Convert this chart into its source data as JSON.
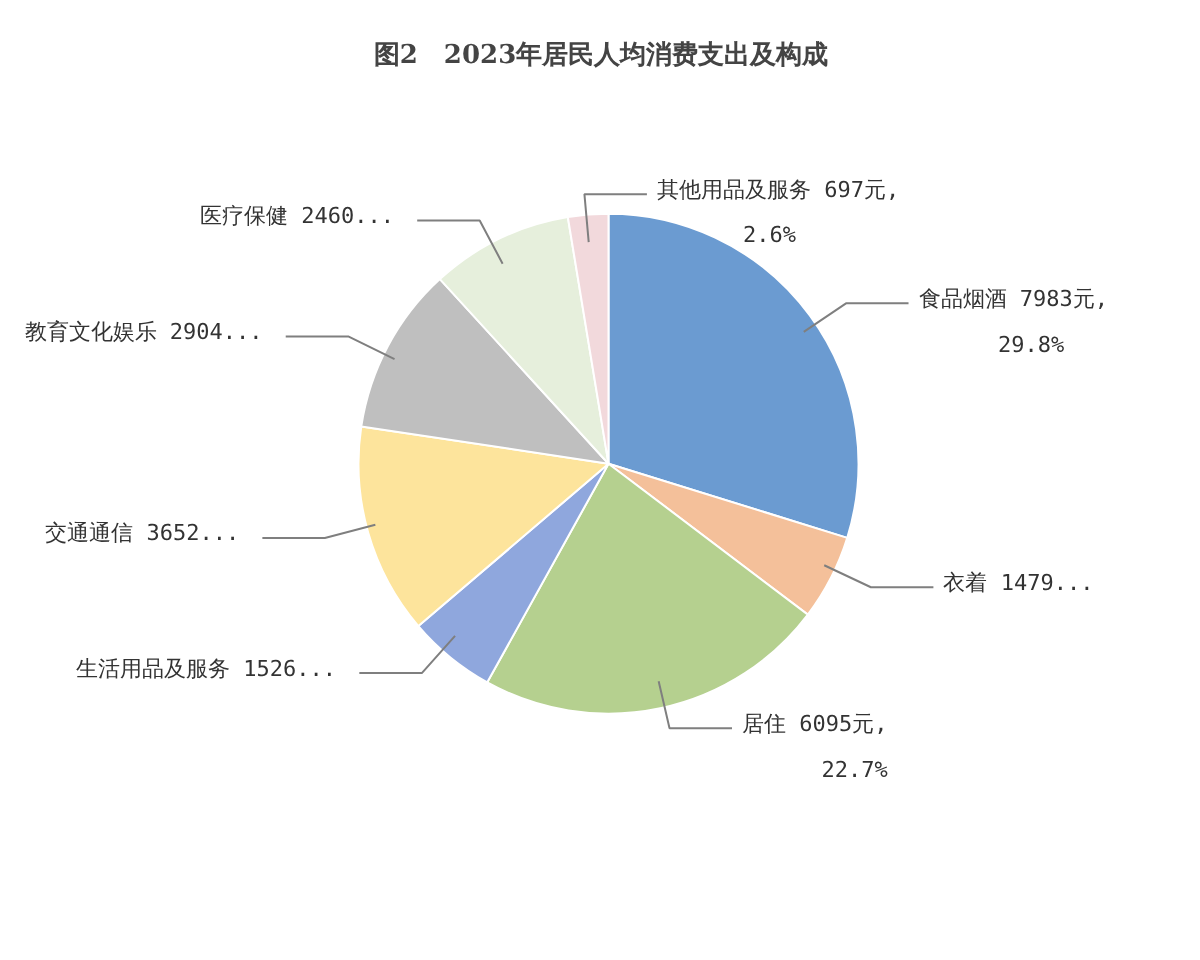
{
  "chart_data": {
    "type": "pie",
    "title": "图2　2023年居民人均消费支出及构成",
    "categories": [
      "食品烟酒",
      "衣着",
      "居住",
      "生活用品及服务",
      "交通通信",
      "教育文化娱乐",
      "医疗保健",
      "其他用品及服务"
    ],
    "values": [
      7983,
      1479,
      6095,
      1526,
      3652,
      2904,
      2460,
      697
    ],
    "colors": [
      "#6b9bd1",
      "#f4c09a",
      "#b5d08f",
      "#8fa7dd",
      "#fde49c",
      "#bfbfbf",
      "#e6efdc",
      "#f2d9dc"
    ],
    "value_labels": [
      "7983元, 29.8%",
      "1479...",
      "6095元, 22.7%",
      "1526...",
      "3652...",
      "2904...",
      "2460...",
      "697元, 2.6%"
    ],
    "legend": false
  }
}
